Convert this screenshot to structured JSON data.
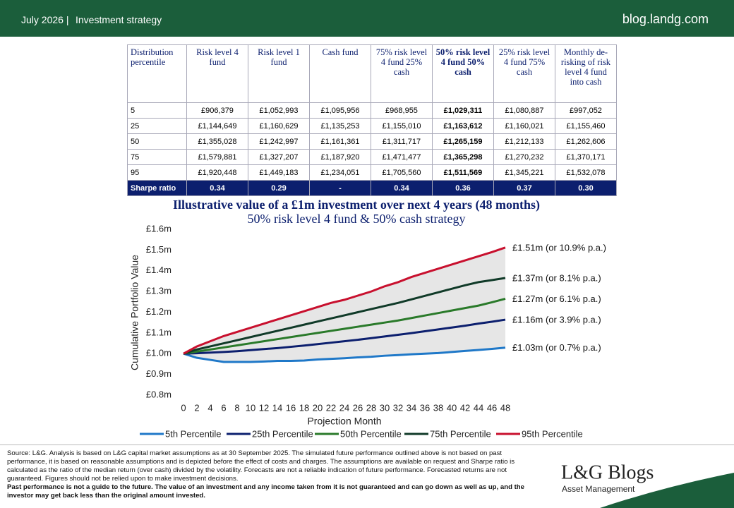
{
  "header": {
    "date": "July 2026 |",
    "section": "Investment strategy",
    "site": "blog.landg.com"
  },
  "table": {
    "columns": [
      "Distribution percentile",
      "Risk level 4 fund",
      "Risk level 1 fund",
      "Cash fund",
      "75% risk level 4 fund 25% cash",
      "50% risk level 4 fund 50% cash",
      "25% risk level 4 fund 75% cash",
      "Monthly de-risking of risk level 4 fund into cash"
    ],
    "rows": [
      [
        "5",
        "£906,379",
        "£1,052,993",
        "£1,095,956",
        "£968,955",
        "£1,029,311",
        "£1,080,887",
        "£997,052"
      ],
      [
        "25",
        "£1,144,649",
        "£1,160,629",
        "£1,135,253",
        "£1,155,010",
        "£1,163,612",
        "£1,160,021",
        "£1,155,460"
      ],
      [
        "50",
        "£1,355,028",
        "£1,242,997",
        "£1,161,361",
        "£1,311,717",
        "£1,265,159",
        "£1,212,133",
        "£1,262,606"
      ],
      [
        "75",
        "£1,579,881",
        "£1,327,207",
        "£1,187,920",
        "£1,471,477",
        "£1,365,298",
        "£1,270,232",
        "£1,370,171"
      ],
      [
        "95",
        "£1,920,448",
        "£1,449,183",
        "£1,234,051",
        "£1,705,560",
        "£1,511,569",
        "£1,345,221",
        "£1,532,078"
      ]
    ],
    "summary": [
      "Sharpe ratio",
      "0.34",
      "0.29",
      "-",
      "0.34",
      "0.36",
      "0.37",
      "0.30"
    ]
  },
  "chart_data": {
    "type": "line",
    "title": "Illustrative value of a £1m investment over next 4 years (48 months)",
    "subtitle": "50% risk level 4 fund & 50% cash strategy",
    "x_label": "Projection Month",
    "y_label": "Cumulative Portfolio Value",
    "x": [
      0,
      2,
      4,
      6,
      8,
      10,
      12,
      14,
      16,
      18,
      20,
      22,
      24,
      26,
      28,
      30,
      32,
      34,
      36,
      38,
      40,
      42,
      44,
      46,
      48
    ],
    "xlim": [
      0,
      48
    ],
    "xticks": [
      0,
      2,
      4,
      6,
      8,
      10,
      12,
      14,
      16,
      18,
      20,
      22,
      24,
      26,
      28,
      30,
      32,
      34,
      36,
      38,
      40,
      42,
      44,
      46,
      48
    ],
    "ylim": [
      0.8,
      1.6
    ],
    "yticks": [
      {
        "value": 0.8,
        "label": "£0.8m"
      },
      {
        "value": 0.9,
        "label": "£0.9m"
      },
      {
        "value": 1.0,
        "label": "£1.0m"
      },
      {
        "value": 1.1,
        "label": "£1.1m"
      },
      {
        "value": 1.2,
        "label": "£1.2m"
      },
      {
        "value": 1.3,
        "label": "£1.3m"
      },
      {
        "value": 1.4,
        "label": "£1.4m"
      },
      {
        "value": 1.5,
        "label": "£1.5m"
      },
      {
        "value": 1.6,
        "label": "£1.6m"
      }
    ],
    "band_color": "#e6e6e6",
    "series": [
      {
        "name": "5th Percentile",
        "color": "#1f78c8",
        "values": [
          1.0,
          0.98,
          0.97,
          0.96,
          0.96,
          0.96,
          0.962,
          0.965,
          0.965,
          0.967,
          0.972,
          0.975,
          0.978,
          0.982,
          0.985,
          0.99,
          0.993,
          0.997,
          1.0,
          1.003,
          1.008,
          1.013,
          1.018,
          1.023,
          1.029
        ]
      },
      {
        "name": "25th Percentile",
        "color": "#0c1f6e",
        "values": [
          1.0,
          1.002,
          1.005,
          1.008,
          1.012,
          1.017,
          1.022,
          1.027,
          1.033,
          1.039,
          1.046,
          1.053,
          1.06,
          1.067,
          1.075,
          1.083,
          1.091,
          1.099,
          1.108,
          1.117,
          1.126,
          1.135,
          1.145,
          1.154,
          1.164
        ]
      },
      {
        "name": "50th Percentile",
        "color": "#2a7a2a",
        "values": [
          1.0,
          1.01,
          1.02,
          1.03,
          1.04,
          1.05,
          1.06,
          1.07,
          1.08,
          1.09,
          1.1,
          1.11,
          1.12,
          1.13,
          1.14,
          1.15,
          1.16,
          1.172,
          1.184,
          1.196,
          1.208,
          1.22,
          1.232,
          1.248,
          1.265
        ]
      },
      {
        "name": "75th Percentile",
        "color": "#103a28",
        "values": [
          1.0,
          1.02,
          1.035,
          1.05,
          1.065,
          1.08,
          1.095,
          1.11,
          1.125,
          1.14,
          1.155,
          1.17,
          1.185,
          1.2,
          1.215,
          1.23,
          1.245,
          1.262,
          1.279,
          1.296,
          1.313,
          1.33,
          1.345,
          1.355,
          1.365
        ]
      },
      {
        "name": "95th Percentile",
        "color": "#c8102e",
        "values": [
          1.0,
          1.035,
          1.06,
          1.085,
          1.105,
          1.125,
          1.145,
          1.165,
          1.185,
          1.205,
          1.225,
          1.245,
          1.26,
          1.28,
          1.3,
          1.325,
          1.345,
          1.37,
          1.39,
          1.41,
          1.43,
          1.45,
          1.47,
          1.49,
          1.512
        ]
      }
    ],
    "annotations": [
      "£1.03m (or 0.7% p.a.)",
      "£1.16m (or 3.9% p.a.)",
      "£1.27m (or 6.1% p.a.)",
      "£1.37m (or 8.1% p.a.)",
      "£1.51m (or 10.9% p.a.)"
    ]
  },
  "footer": {
    "source": "Source: L&G. Analysis is based on L&G capital market assumptions as at 30 September 2025. The simulated future performance outlined above is not based on past performance, it is based on reasonable assumptions and is depicted before the effect of costs and charges. The assumptions are available on request and Sharpe ratio is calculated as the ratio of the median return (over cash) divided by the volatility. Forecasts are not a reliable indication of future performance. Forecasted returns are not guaranteed. Figures should not be relied upon to make investment decisions.",
    "disclaimer": "Past performance is not a guide to the future. The value of an investment and any income taken from it is not guaranteed and can go down as well as up, and the investor may get back less than the original amount invested.",
    "logo": "L&G Blogs",
    "logo_sub": "Asset Management"
  }
}
